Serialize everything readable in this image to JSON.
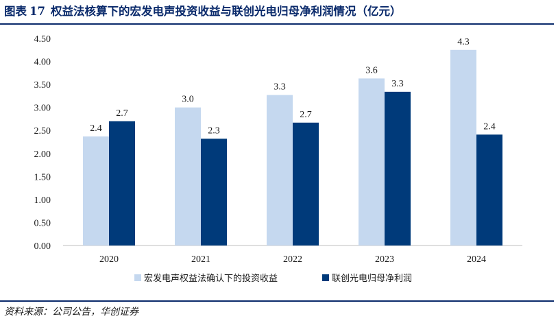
{
  "header": {
    "label": "图表",
    "number": "17",
    "title": "权益法核算下的宏发电声投资收益与联创光电归母净利润情况（亿元）"
  },
  "source": "资料来源：公司公告，华创证券",
  "colors": {
    "series1": "#c5d8ef",
    "series2": "#003a7a",
    "rule": "#0a2a6b"
  },
  "chart_data": {
    "type": "bar",
    "categories": [
      "2020",
      "2021",
      "2022",
      "2023",
      "2024"
    ],
    "series": [
      {
        "name": "宏发电声权益法确认下的投资收益",
        "values": [
          2.37,
          3.0,
          3.27,
          3.63,
          4.25
        ],
        "labels": [
          "2.4",
          "3.0",
          "3.3",
          "3.6",
          "4.3"
        ]
      },
      {
        "name": "联创光电归母净利润",
        "values": [
          2.7,
          2.32,
          2.67,
          3.34,
          2.41
        ],
        "labels": [
          "2.7",
          "2.3",
          "2.7",
          "3.3",
          "2.4"
        ]
      }
    ],
    "yticks": [
      "0.00",
      "0.50",
      "1.00",
      "1.50",
      "2.00",
      "2.50",
      "3.00",
      "3.50",
      "4.00",
      "4.50"
    ],
    "ylim": [
      0,
      4.5
    ],
    "grid": false,
    "legend": "bottom"
  }
}
